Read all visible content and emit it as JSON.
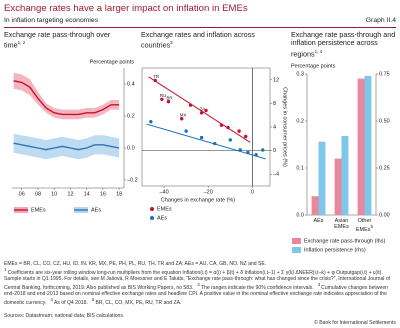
{
  "header": {
    "title": "Exchange rates have a larger impact on inflation in EMEs",
    "subtitle": "In inflation targeting economies",
    "graph_id": "Graph II.4"
  },
  "chart_data": [
    {
      "type": "line",
      "title": "Exchange rate pass-through over time",
      "title_note": "1, 2",
      "unit": "Percentage points",
      "x": [
        2005,
        2006,
        2007,
        2008,
        2009,
        2010,
        2011,
        2012,
        2013,
        2014,
        2015,
        2016,
        2017,
        2018
      ],
      "xlim": [
        2004.8,
        2018.6
      ],
      "xticks": [
        {
          "value": 2006,
          "label": "06"
        },
        {
          "value": 2008,
          "label": "08"
        },
        {
          "value": 2010,
          "label": "10"
        },
        {
          "value": 2012,
          "label": "12"
        },
        {
          "value": 2014,
          "label": "14"
        },
        {
          "value": 2016,
          "label": "16"
        },
        {
          "value": 2018,
          "label": "18"
        }
      ],
      "ylim": [
        -0.25,
        0.5
      ],
      "yticks": [
        {
          "value": -0.2,
          "label": "–0.2"
        },
        {
          "value": 0,
          "label": "0.0"
        },
        0.2,
        0.4
      ],
      "series": [
        {
          "name": "EMEs",
          "color": "#c8102e",
          "band_color": "#f1a9b5",
          "values": [
            0.42,
            0.41,
            0.38,
            0.31,
            0.25,
            0.22,
            0.21,
            0.21,
            0.21,
            0.22,
            0.22,
            0.24,
            0.27,
            0.27
          ],
          "lower": [
            0.37,
            0.36,
            0.33,
            0.27,
            0.22,
            0.19,
            0.18,
            0.18,
            0.18,
            0.19,
            0.19,
            0.21,
            0.24,
            0.24
          ],
          "upper": [
            0.47,
            0.46,
            0.43,
            0.35,
            0.28,
            0.25,
            0.24,
            0.24,
            0.24,
            0.25,
            0.25,
            0.27,
            0.3,
            0.3
          ]
        },
        {
          "name": "AEs",
          "color": "#2e75b6",
          "band_color": "#b3d6ef",
          "values": [
            0.03,
            0.02,
            0.01,
            0,
            -0.01,
            0,
            0.01,
            0,
            -0.01,
            0,
            0.02,
            0.02,
            0.01,
            0
          ],
          "lower": [
            -0.03,
            -0.04,
            -0.05,
            -0.06,
            -0.07,
            -0.06,
            -0.05,
            -0.06,
            -0.07,
            -0.06,
            -0.04,
            -0.04,
            -0.05,
            -0.06
          ],
          "upper": [
            0.09,
            0.08,
            0.07,
            0.06,
            0.05,
            0.06,
            0.07,
            0.06,
            0.05,
            0.06,
            0.08,
            0.08,
            0.07,
            0.06
          ]
        }
      ]
    },
    {
      "type": "scatter",
      "title": "Exchange rates and inflation across countries",
      "title_note": "3",
      "x_label": "Changes in exchange rate (%)",
      "y_label": "Changes in consumer prices (%)",
      "xlim": [
        -50,
        8
      ],
      "xticks": [
        {
          "value": -40,
          "label": "–40"
        },
        {
          "value": -20,
          "label": "–20"
        },
        0
      ],
      "ylim": [
        -6,
        14
      ],
      "yticks": [
        {
          "value": -4,
          "label": "–4"
        },
        0,
        4,
        8,
        12
      ],
      "series": [
        {
          "name": "EMEs",
          "color": "#c8102e",
          "x": [
            -44,
            -41,
            -38,
            -32,
            -28,
            -23,
            -21,
            -14,
            -11,
            -6,
            -3
          ],
          "values": [
            11.9,
            8.7,
            8.3,
            5.4,
            7.7,
            6.4,
            6.8,
            4.3,
            3.9,
            3.3,
            2.4
          ],
          "labels": [
            "TR",
            "RU",
            "BR",
            "MX",
            null,
            "ZA",
            null,
            null,
            null,
            null,
            null
          ],
          "fit_x": [
            -47,
            -1
          ],
          "fit_y": [
            12.5,
            1.4
          ]
        },
        {
          "name": "AEs",
          "color": "#1a70c0",
          "x": [
            -46,
            -30,
            -23,
            -17,
            -10,
            -5.5,
            -2,
            1.7,
            4.7
          ],
          "values": [
            4.9,
            3.3,
            2.2,
            1.2,
            1.8,
            0.1,
            -0.3,
            -0.7,
            0.1
          ],
          "fit_x": [
            -48,
            6
          ],
          "fit_y": [
            4.5,
            -1.4
          ]
        }
      ]
    },
    {
      "type": "bar",
      "title": "Exchange rate pass-through and inflation persistence across regions",
      "title_note": "1, 4",
      "unit": "Percentage points",
      "categories": [
        "AEs",
        "Asian EMEs",
        "Other EMEs"
      ],
      "category_notes": [
        null,
        null,
        "5"
      ],
      "ylim": [
        0,
        0.3
      ],
      "yticks": [
        {
          "value": 0,
          "label": "0.0"
        },
        0.1,
        0.2,
        0.3
      ],
      "y2lim": [
        0,
        0.75
      ],
      "y2ticks": [
        {
          "value": 0,
          "label": "0.00"
        },
        0.25,
        {
          "value": 0.5,
          "label": "0.50"
        },
        0.75
      ],
      "series": [
        {
          "name": "Exchange rate pass-through (lhs)",
          "color": "#e9879b",
          "values": [
            0.04,
            0.12,
            0.29
          ]
        },
        {
          "name": "Inflation persistence (rhs)",
          "color": "#7cc7ea",
          "axis": "y2",
          "values": [
            0.39,
            0.42,
            0.74
          ]
        }
      ]
    }
  ],
  "notes": {
    "definitions": "EMEs = BR, CL, CO, CZ, HU, ID, IN, KR, MX, PE, PH, PL, RU, TH, TR and ZA; AEs = AU, CA, GB, NO, NZ and SE.",
    "footnotes": [
      {
        "number": "1",
        "text": "Coefficients are six-year rolling window long-run multipliers from the equation Inflation(i,t) = α(i) + β(t) + δ Inflation(i,t–1) + Σ γ(k) ΔNEER(i,t–k) + φ Outputgap(i,t) + ε(it). Sample starts in Q1 1995. For details, see M Jašová, R Moessner and E Takáts, “Exchange rate pass-through: what has changed since the crisis?”, International Journal of Central Banking, forthcoming, 2019. Also published as BIS Working Papers, no 583."
      },
      {
        "number": "2",
        "text": "The ranges indicate the 90% confidence intervals."
      },
      {
        "number": "3",
        "text": "Cumulative changes between end-2018 and end-2013 based on nominal effective exchange rates and headline CPI. A positive value in the nominal effective exchange rate indicates appreciation of the domestic currency."
      },
      {
        "number": "4",
        "text": "As of Q4 2018."
      },
      {
        "number": "5",
        "text": "BR, CL, CO, MX, PE, RU, TR and ZA."
      }
    ],
    "sources": "Sources: Datastream; national data; BIS calculations.",
    "copyright": "© Bank for International Settlements"
  }
}
